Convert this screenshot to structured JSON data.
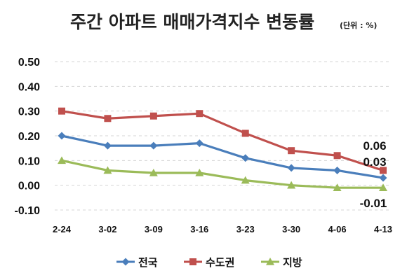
{
  "chart_data": {
    "type": "line",
    "title": "주간 아파트 매매가격지수 변동률",
    "unit_note": "(단위 : %)",
    "categories": [
      "2-24",
      "3-02",
      "3-09",
      "3-16",
      "3-23",
      "3-30",
      "4-06",
      "4-13"
    ],
    "ylim": [
      -0.1,
      0.5
    ],
    "yticks": [
      "0.50",
      "0.40",
      "0.30",
      "0.20",
      "0.10",
      "0.00",
      "-0.10"
    ],
    "ytick_values": [
      0.5,
      0.4,
      0.3,
      0.2,
      0.1,
      0.0,
      -0.1
    ],
    "grid": true,
    "legend_position": "bottom",
    "series": [
      {
        "name": "전국",
        "color": "#4a7ebb",
        "marker": "diamond",
        "values": [
          0.2,
          0.16,
          0.16,
          0.17,
          0.11,
          0.07,
          0.06,
          0.03
        ]
      },
      {
        "name": "수도권",
        "color": "#c0504d",
        "marker": "square",
        "values": [
          0.3,
          0.27,
          0.28,
          0.29,
          0.21,
          0.14,
          0.12,
          0.06
        ]
      },
      {
        "name": "지방",
        "color": "#9bbb59",
        "marker": "triangle",
        "values": [
          0.1,
          0.06,
          0.05,
          0.05,
          0.02,
          0.0,
          -0.01,
          -0.01
        ]
      }
    ],
    "data_labels": [
      "0.06",
      "0.03",
      "-0.01"
    ]
  }
}
